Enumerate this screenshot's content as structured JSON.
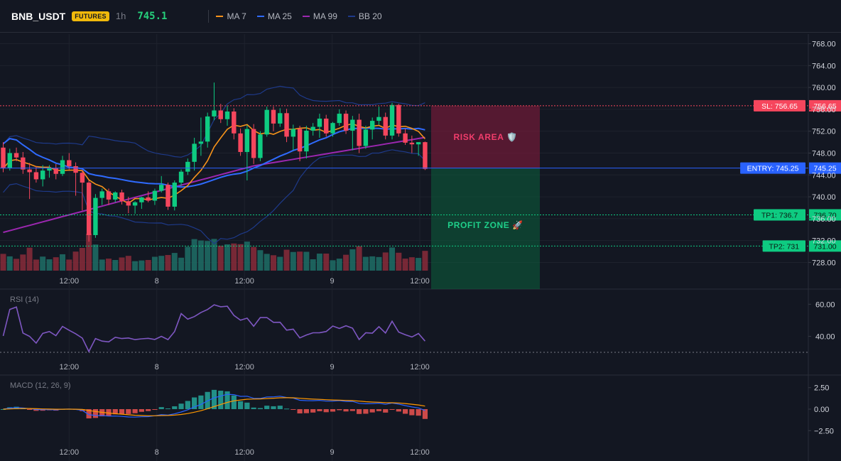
{
  "header": {
    "symbol": "BNB_USDT",
    "badge": "FUTURES",
    "timeframe": "1h",
    "last_price": "745.1"
  },
  "legend": [
    {
      "label": "MA 7",
      "color": "#f7931a"
    },
    {
      "label": "MA 25",
      "color": "#2f6bff"
    },
    {
      "label": "MA 99",
      "color": "#9c27b0"
    },
    {
      "label": "BB 20",
      "color": "#1e3a8a"
    }
  ],
  "colors": {
    "up": "#26a69a",
    "up_bright": "#0ecb81",
    "down": "#f6465d",
    "bg": "#131722"
  },
  "levels": {
    "sl": {
      "label": "SL: 756.65",
      "value": 756.65,
      "color": "#f6465d"
    },
    "entry": {
      "label": "ENTRY: 745.25",
      "value": 745.25,
      "color": "#2962ff"
    },
    "tp1": {
      "label": "TP1: 736.7",
      "value": 736.7,
      "color": "#0ecb81"
    },
    "tp2": {
      "label": "TP2: 731",
      "value": 731.0,
      "color": "#0ecb81"
    }
  },
  "zones": {
    "risk_label": "RISK AREA 🛡️",
    "profit_label": "PROFIT ZONE 🚀"
  },
  "chart_data": [
    {
      "type": "candlestick",
      "yticks": [
        728,
        732,
        736,
        740,
        744,
        748,
        752,
        756,
        760,
        764,
        768
      ],
      "ylim": [
        726.5,
        769.5
      ],
      "x_tick_labels": [
        "12:00",
        "8",
        "12:00",
        "9",
        "12:00"
      ],
      "indicators": [
        "MA 7",
        "MA 25",
        "MA 99",
        "BB 20"
      ],
      "candles": [
        [
          749.0,
          750.0,
          744.5,
          745.2
        ],
        [
          745.2,
          748.8,
          744.8,
          748.0
        ],
        [
          748.0,
          749.0,
          746.5,
          747.2
        ],
        [
          747.2,
          748.2,
          744.2,
          745.0
        ],
        [
          745.0,
          746.2,
          739.6,
          744.5
        ],
        [
          744.5,
          745.6,
          742.6,
          743.2
        ],
        [
          743.2,
          745.8,
          741.9,
          744.8
        ],
        [
          744.8,
          745.8,
          743.5,
          745.2
        ],
        [
          745.2,
          746.0,
          743.2,
          744.2
        ],
        [
          744.2,
          747.5,
          743.8,
          746.7
        ],
        [
          746.7,
          748.0,
          745.0,
          745.6
        ],
        [
          745.6,
          746.3,
          740.2,
          744.4
        ],
        [
          744.4,
          744.8,
          737.5,
          742.6
        ],
        [
          742.6,
          743.0,
          731.8,
          733.0
        ],
        [
          733.0,
          740.5,
          732.5,
          739.8
        ],
        [
          739.8,
          741.5,
          738.5,
          741.0
        ],
        [
          741.0,
          741.5,
          738.5,
          739.5
        ],
        [
          739.5,
          741.0,
          739.0,
          740.8
        ],
        [
          740.8,
          741.3,
          738.6,
          739.2
        ],
        [
          739.2,
          740.0,
          737.0,
          738.4
        ],
        [
          738.4,
          739.2,
          736.9,
          739.0
        ],
        [
          739.0,
          740.0,
          737.8,
          739.9
        ],
        [
          739.9,
          741.0,
          739.0,
          739.3
        ],
        [
          739.3,
          741.5,
          738.5,
          741.1
        ],
        [
          741.1,
          743.8,
          740.8,
          742.2
        ],
        [
          742.2,
          742.6,
          737.6,
          738.2
        ],
        [
          738.2,
          743.0,
          737.5,
          742.6
        ],
        [
          742.6,
          745.0,
          742.0,
          744.6
        ],
        [
          744.6,
          747.0,
          744.0,
          746.4
        ],
        [
          746.4,
          750.8,
          744.8,
          749.7
        ],
        [
          749.7,
          754.5,
          747.5,
          750.1
        ],
        [
          750.1,
          755.4,
          749.0,
          754.7
        ],
        [
          754.7,
          760.9,
          754.0,
          755.8
        ],
        [
          755.8,
          757.0,
          753.5,
          754.2
        ],
        [
          754.2,
          756.7,
          753.0,
          755.6
        ],
        [
          755.6,
          756.2,
          750.5,
          751.6
        ],
        [
          751.6,
          752.5,
          747.5,
          748.2
        ],
        [
          748.2,
          753.1,
          743.0,
          752.4
        ],
        [
          752.4,
          753.3,
          746.0,
          747.1
        ],
        [
          747.1,
          752.0,
          746.5,
          751.4
        ],
        [
          751.4,
          756.5,
          751.0,
          755.9
        ],
        [
          755.9,
          756.5,
          752.0,
          753.4
        ],
        [
          753.4,
          756.2,
          752.8,
          755.3
        ],
        [
          755.3,
          756.1,
          750.0,
          751.0
        ],
        [
          751.0,
          753.2,
          748.5,
          752.4
        ],
        [
          752.4,
          753.0,
          746.5,
          748.3
        ],
        [
          748.3,
          753.0,
          747.0,
          752.1
        ],
        [
          752.1,
          753.5,
          751.2,
          752.8
        ],
        [
          752.8,
          755.2,
          750.8,
          754.3
        ],
        [
          754.3,
          755.0,
          751.0,
          751.6
        ],
        [
          751.6,
          753.7,
          751.0,
          753.5
        ],
        [
          753.5,
          756.0,
          753.0,
          755.2
        ],
        [
          755.2,
          755.8,
          751.5,
          752.1
        ],
        [
          752.1,
          754.8,
          748.5,
          754.1
        ],
        [
          754.1,
          755.2,
          748.0,
          749.3
        ],
        [
          749.3,
          753.0,
          748.8,
          752.3
        ],
        [
          752.3,
          754.5,
          750.5,
          753.9
        ],
        [
          753.9,
          756.5,
          753.2,
          754.6
        ],
        [
          754.6,
          755.4,
          750.5,
          751.2
        ],
        [
          751.2,
          757.2,
          750.5,
          756.8
        ],
        [
          756.8,
          757.0,
          751.0,
          751.6
        ],
        [
          751.6,
          752.5,
          749.5,
          749.9
        ],
        [
          749.9,
          751.2,
          748.0,
          749.6
        ],
        [
          749.6,
          750.0,
          747.5,
          750.0
        ],
        [
          750.0,
          750.1,
          744.9,
          745.1
        ]
      ]
    },
    {
      "type": "line",
      "title": "RSI (14)",
      "yticks": [
        40,
        60
      ],
      "ylim": [
        26,
        69
      ],
      "level": 30
    },
    {
      "type": "histogram",
      "title": "MACD (12, 26, 9)",
      "yticks": [
        -2.5,
        0.0,
        2.5
      ],
      "ytick_labels": [
        "−2.50",
        "0.00",
        "2.50"
      ],
      "ylim": [
        -3.8,
        3.8
      ],
      "series": [
        "MACD",
        "Signal",
        "Histogram"
      ]
    }
  ]
}
